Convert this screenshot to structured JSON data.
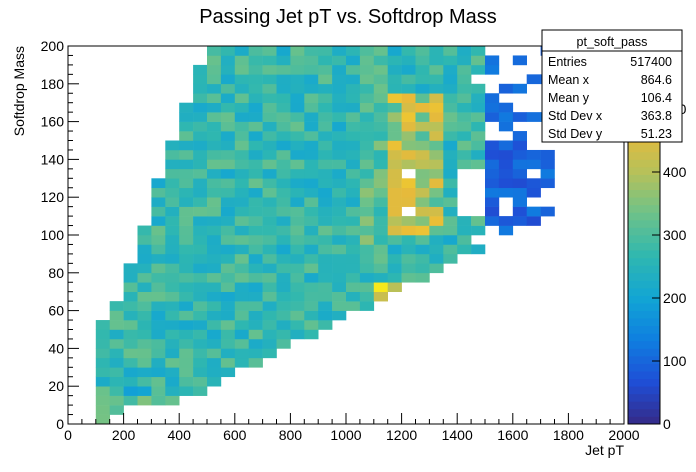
{
  "chart_data": {
    "type": "heatmap",
    "title": "Passing Jet pT vs. Softdrop Mass",
    "xlabel": "Jet pT",
    "ylabel": "Softdrop Mass",
    "xlim": [
      0,
      2000
    ],
    "ylim": [
      0,
      200
    ],
    "x_ticks": [
      "0",
      "200",
      "400",
      "600",
      "800",
      "1000",
      "1200",
      "1400",
      "1600",
      "1800",
      "2000"
    ],
    "y_ticks": [
      "0",
      "20",
      "40",
      "60",
      "80",
      "100",
      "120",
      "140",
      "160",
      "180",
      "200"
    ],
    "colorbar": {
      "range": [
        0,
        600
      ],
      "ticks": [
        "0",
        "100",
        "200",
        "300",
        "400",
        "500"
      ],
      "palette": [
        "#352a87",
        "#1f4ed6",
        "#0f7ee0",
        "#12a5d4",
        "#2fb7b0",
        "#6cc28a",
        "#b6c15a",
        "#e8ba3a",
        "#f6dc25",
        "#f9fb0e"
      ]
    },
    "bins": {
      "nx": 40,
      "ny": 40,
      "dx": 50,
      "dy": 5
    },
    "stats": {
      "name": "pt_soft_pass",
      "rows": [
        {
          "label": "Entries",
          "value": "517400"
        },
        {
          "label": "Mean x",
          "value": "864.6"
        },
        {
          "label": "Mean y",
          "value": "106.4"
        },
        {
          "label": "Std Dev x",
          "value": "363.8"
        },
        {
          "label": "Std Dev y",
          "value": "51.23"
        }
      ]
    },
    "content_description": "Histogram counts: most populated region between pT 200-1400 and mass 20-200 with values ~250-400; hot spots near pT 1150-1350, mass 55-70 (~550-600) and pT 1300-1350, mass 110-170 (~450); boundary cut near mass ~ pT/10; sparse bins above pT 1500 (~50-150)."
  }
}
